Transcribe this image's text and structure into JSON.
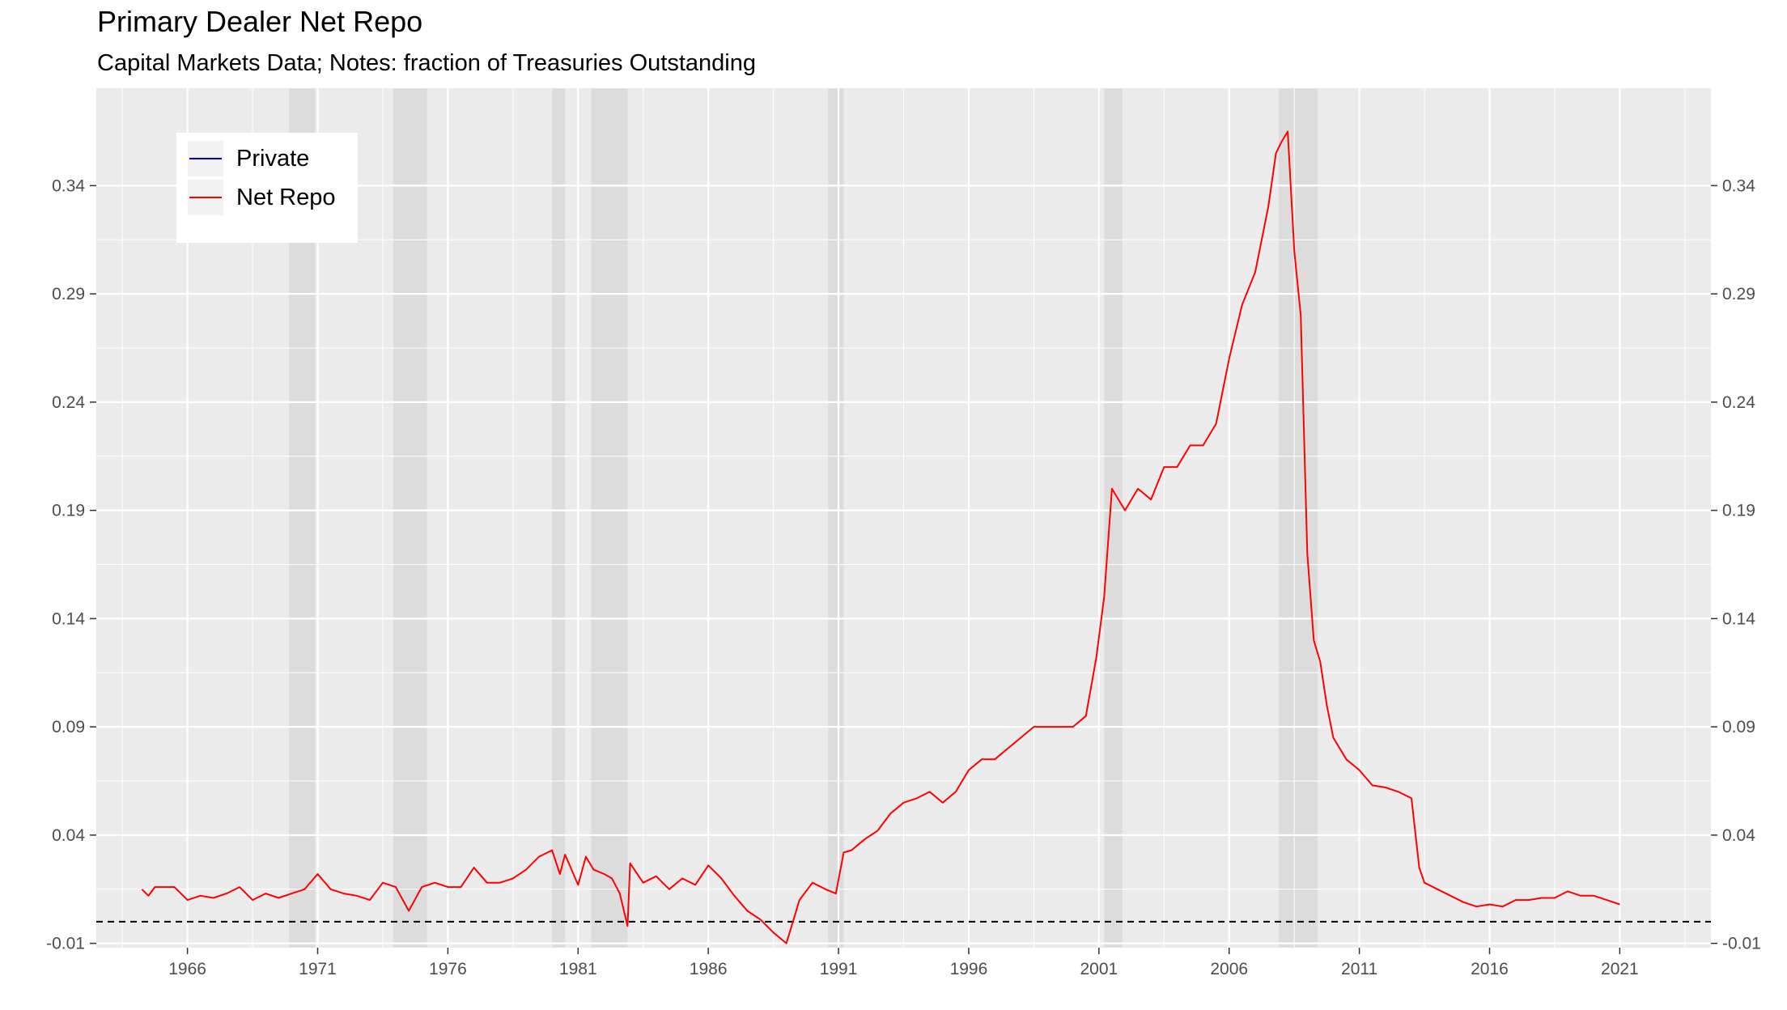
{
  "title": "Primary Dealer Net Repo",
  "subtitle": "Capital Markets Data; Notes: fraction of Treasuries Outstanding",
  "colors": {
    "panel_background": "#ebebeb",
    "grid_major": "#ffffff",
    "recession_shade": "#d9d9d9",
    "net_repo": "#ff0000",
    "private": "#0000cc",
    "reference_line": "#000000"
  },
  "chart_data": {
    "type": "line",
    "title": "Primary Dealer Net Repo",
    "subtitle": "Capital Markets Data; Notes: fraction of Treasuries Outstanding",
    "xlabel": "",
    "ylabel": "",
    "xlim": [
      1962.5,
      2024.5
    ],
    "ylim": [
      -0.012,
      0.385
    ],
    "x_ticks": [
      1966,
      1971,
      1976,
      1981,
      1986,
      1991,
      1996,
      2001,
      2006,
      2011,
      2016,
      2021
    ],
    "x_tick_labels": [
      "1966",
      "1971",
      "1976",
      "1981",
      "1986",
      "1991",
      "1996",
      "2001",
      "2006",
      "2011",
      "2016",
      "2021"
    ],
    "y_ticks": [
      -0.01,
      0.04,
      0.09,
      0.14,
      0.19,
      0.24,
      0.29,
      0.34
    ],
    "y_tick_labels": [
      "-0.01",
      "0.04",
      "0.09",
      "0.14",
      "0.19",
      "0.24",
      "0.29",
      "0.34"
    ],
    "secondary_y_axis": true,
    "grid": true,
    "legend": {
      "position": "top-left",
      "entries": [
        {
          "label": "Private",
          "color": "#0000cc"
        },
        {
          "label": "Net Repo",
          "color": "#ff0000"
        }
      ]
    },
    "reference_line": {
      "y": 0,
      "style": "dashed"
    },
    "recessions": [
      [
        1969.9,
        1970.9
      ],
      [
        1973.9,
        1975.2
      ],
      [
        1980.0,
        1980.5
      ],
      [
        1981.5,
        1982.9
      ],
      [
        1990.6,
        1991.2
      ],
      [
        2001.2,
        2001.9
      ],
      [
        2007.9,
        2009.4
      ]
    ],
    "series": [
      {
        "name": "Net Repo",
        "color": "#ff0000",
        "x": [
          1964.25,
          1964.5,
          1964.75,
          1965.0,
          1965.5,
          1966.0,
          1966.5,
          1967.0,
          1967.5,
          1968.0,
          1968.5,
          1969.0,
          1969.5,
          1970.0,
          1970.5,
          1971.0,
          1971.5,
          1972.0,
          1972.5,
          1973.0,
          1973.5,
          1974.0,
          1974.5,
          1975.0,
          1975.5,
          1976.0,
          1976.5,
          1977.0,
          1977.5,
          1978.0,
          1978.5,
          1979.0,
          1979.5,
          1980.0,
          1980.3,
          1980.5,
          1981.0,
          1981.3,
          1981.6,
          1982.0,
          1982.3,
          1982.6,
          1982.9,
          1983.0,
          1983.5,
          1984.0,
          1984.5,
          1985.0,
          1985.5,
          1986.0,
          1986.5,
          1987.0,
          1987.5,
          1988.0,
          1988.5,
          1989.0,
          1989.5,
          1990.0,
          1990.5,
          1990.9,
          1991.2,
          1991.5,
          1992.0,
          1992.5,
          1993.0,
          1993.5,
          1994.0,
          1994.5,
          1995.0,
          1995.5,
          1996.0,
          1996.5,
          1997.0,
          1997.5,
          1998.0,
          1998.5,
          1999.0,
          1999.5,
          2000.0,
          2000.5,
          2000.9,
          2001.2,
          2001.5,
          2002.0,
          2002.5,
          2003.0,
          2003.5,
          2004.0,
          2004.5,
          2005.0,
          2005.5,
          2006.0,
          2006.5,
          2007.0,
          2007.5,
          2007.8,
          2008.0,
          2008.25,
          2008.5,
          2008.75,
          2009.0,
          2009.25,
          2009.5,
          2009.75,
          2010.0,
          2010.5,
          2011.0,
          2011.5,
          2012.0,
          2012.5,
          2013.0,
          2013.3,
          2013.5,
          2014.0,
          2014.5,
          2015.0,
          2015.5,
          2016.0,
          2016.5,
          2017.0,
          2017.5,
          2018.0,
          2018.5,
          2019.0,
          2019.5,
          2020.0,
          2020.5,
          2021.0
        ],
        "values": [
          0.015,
          0.012,
          0.016,
          0.016,
          0.016,
          0.01,
          0.012,
          0.011,
          0.013,
          0.016,
          0.01,
          0.013,
          0.011,
          0.013,
          0.015,
          0.022,
          0.015,
          0.013,
          0.012,
          0.01,
          0.018,
          0.016,
          0.005,
          0.016,
          0.018,
          0.016,
          0.016,
          0.025,
          0.018,
          0.018,
          0.02,
          0.024,
          0.03,
          0.033,
          0.022,
          0.031,
          0.017,
          0.03,
          0.024,
          0.022,
          0.02,
          0.013,
          -0.002,
          0.027,
          0.018,
          0.021,
          0.015,
          0.02,
          0.017,
          0.026,
          0.02,
          0.012,
          0.005,
          0.001,
          -0.005,
          -0.01,
          0.01,
          0.018,
          0.015,
          0.013,
          0.032,
          0.033,
          0.038,
          0.042,
          0.05,
          0.055,
          0.057,
          0.06,
          0.055,
          0.06,
          0.07,
          0.075,
          0.075,
          0.08,
          0.085,
          0.09,
          0.09,
          0.09,
          0.09,
          0.095,
          0.122,
          0.15,
          0.2,
          0.19,
          0.2,
          0.195,
          0.21,
          0.21,
          0.22,
          0.22,
          0.23,
          0.26,
          0.285,
          0.3,
          0.33,
          0.355,
          0.36,
          0.365,
          0.31,
          0.28,
          0.17,
          0.13,
          0.12,
          0.1,
          0.085,
          0.075,
          0.07,
          0.063,
          0.062,
          0.06,
          0.057,
          0.025,
          0.018,
          0.015,
          0.012,
          0.009,
          0.007,
          0.008,
          0.007,
          0.01,
          0.01,
          0.011,
          0.011,
          0.014,
          0.012,
          0.012,
          0.01,
          0.008
        ]
      }
    ]
  }
}
